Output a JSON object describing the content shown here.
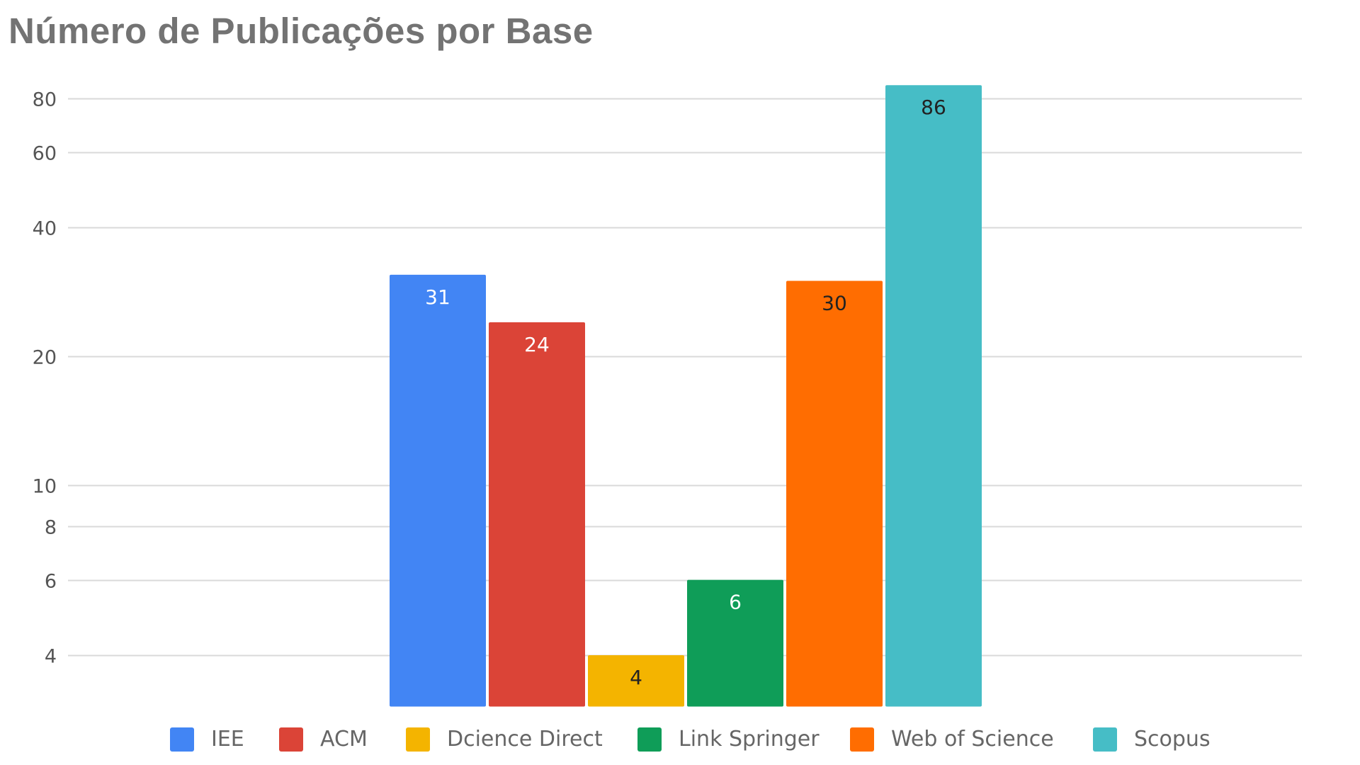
{
  "chart_data": {
    "type": "bar",
    "title": "Número de Publicações por Base",
    "xlabel": "",
    "ylabel": "",
    "y_scale": "log",
    "ylim": [
      3,
      88
    ],
    "y_ticks": [
      4,
      6,
      8,
      10,
      20,
      40,
      60,
      80
    ],
    "grid": true,
    "legend_position": "bottom",
    "series": [
      {
        "name": "IEE",
        "value": 31,
        "color": "#4285f4"
      },
      {
        "name": "ACM",
        "value": 24,
        "color": "#db4437"
      },
      {
        "name": "Dcience Direct",
        "value": 4,
        "color": "#f4b400"
      },
      {
        "name": "Link Springer",
        "value": 6,
        "color": "#0f9d58"
      },
      {
        "name": "Web of Science",
        "value": 30,
        "color": "#ff6d01"
      },
      {
        "name": "Scopus",
        "value": 86,
        "color": "#46bdc6"
      }
    ],
    "data_label_colors": [
      "#ffffff",
      "#ffffff",
      "#222222",
      "#ffffff",
      "#222222",
      "#222222"
    ]
  }
}
